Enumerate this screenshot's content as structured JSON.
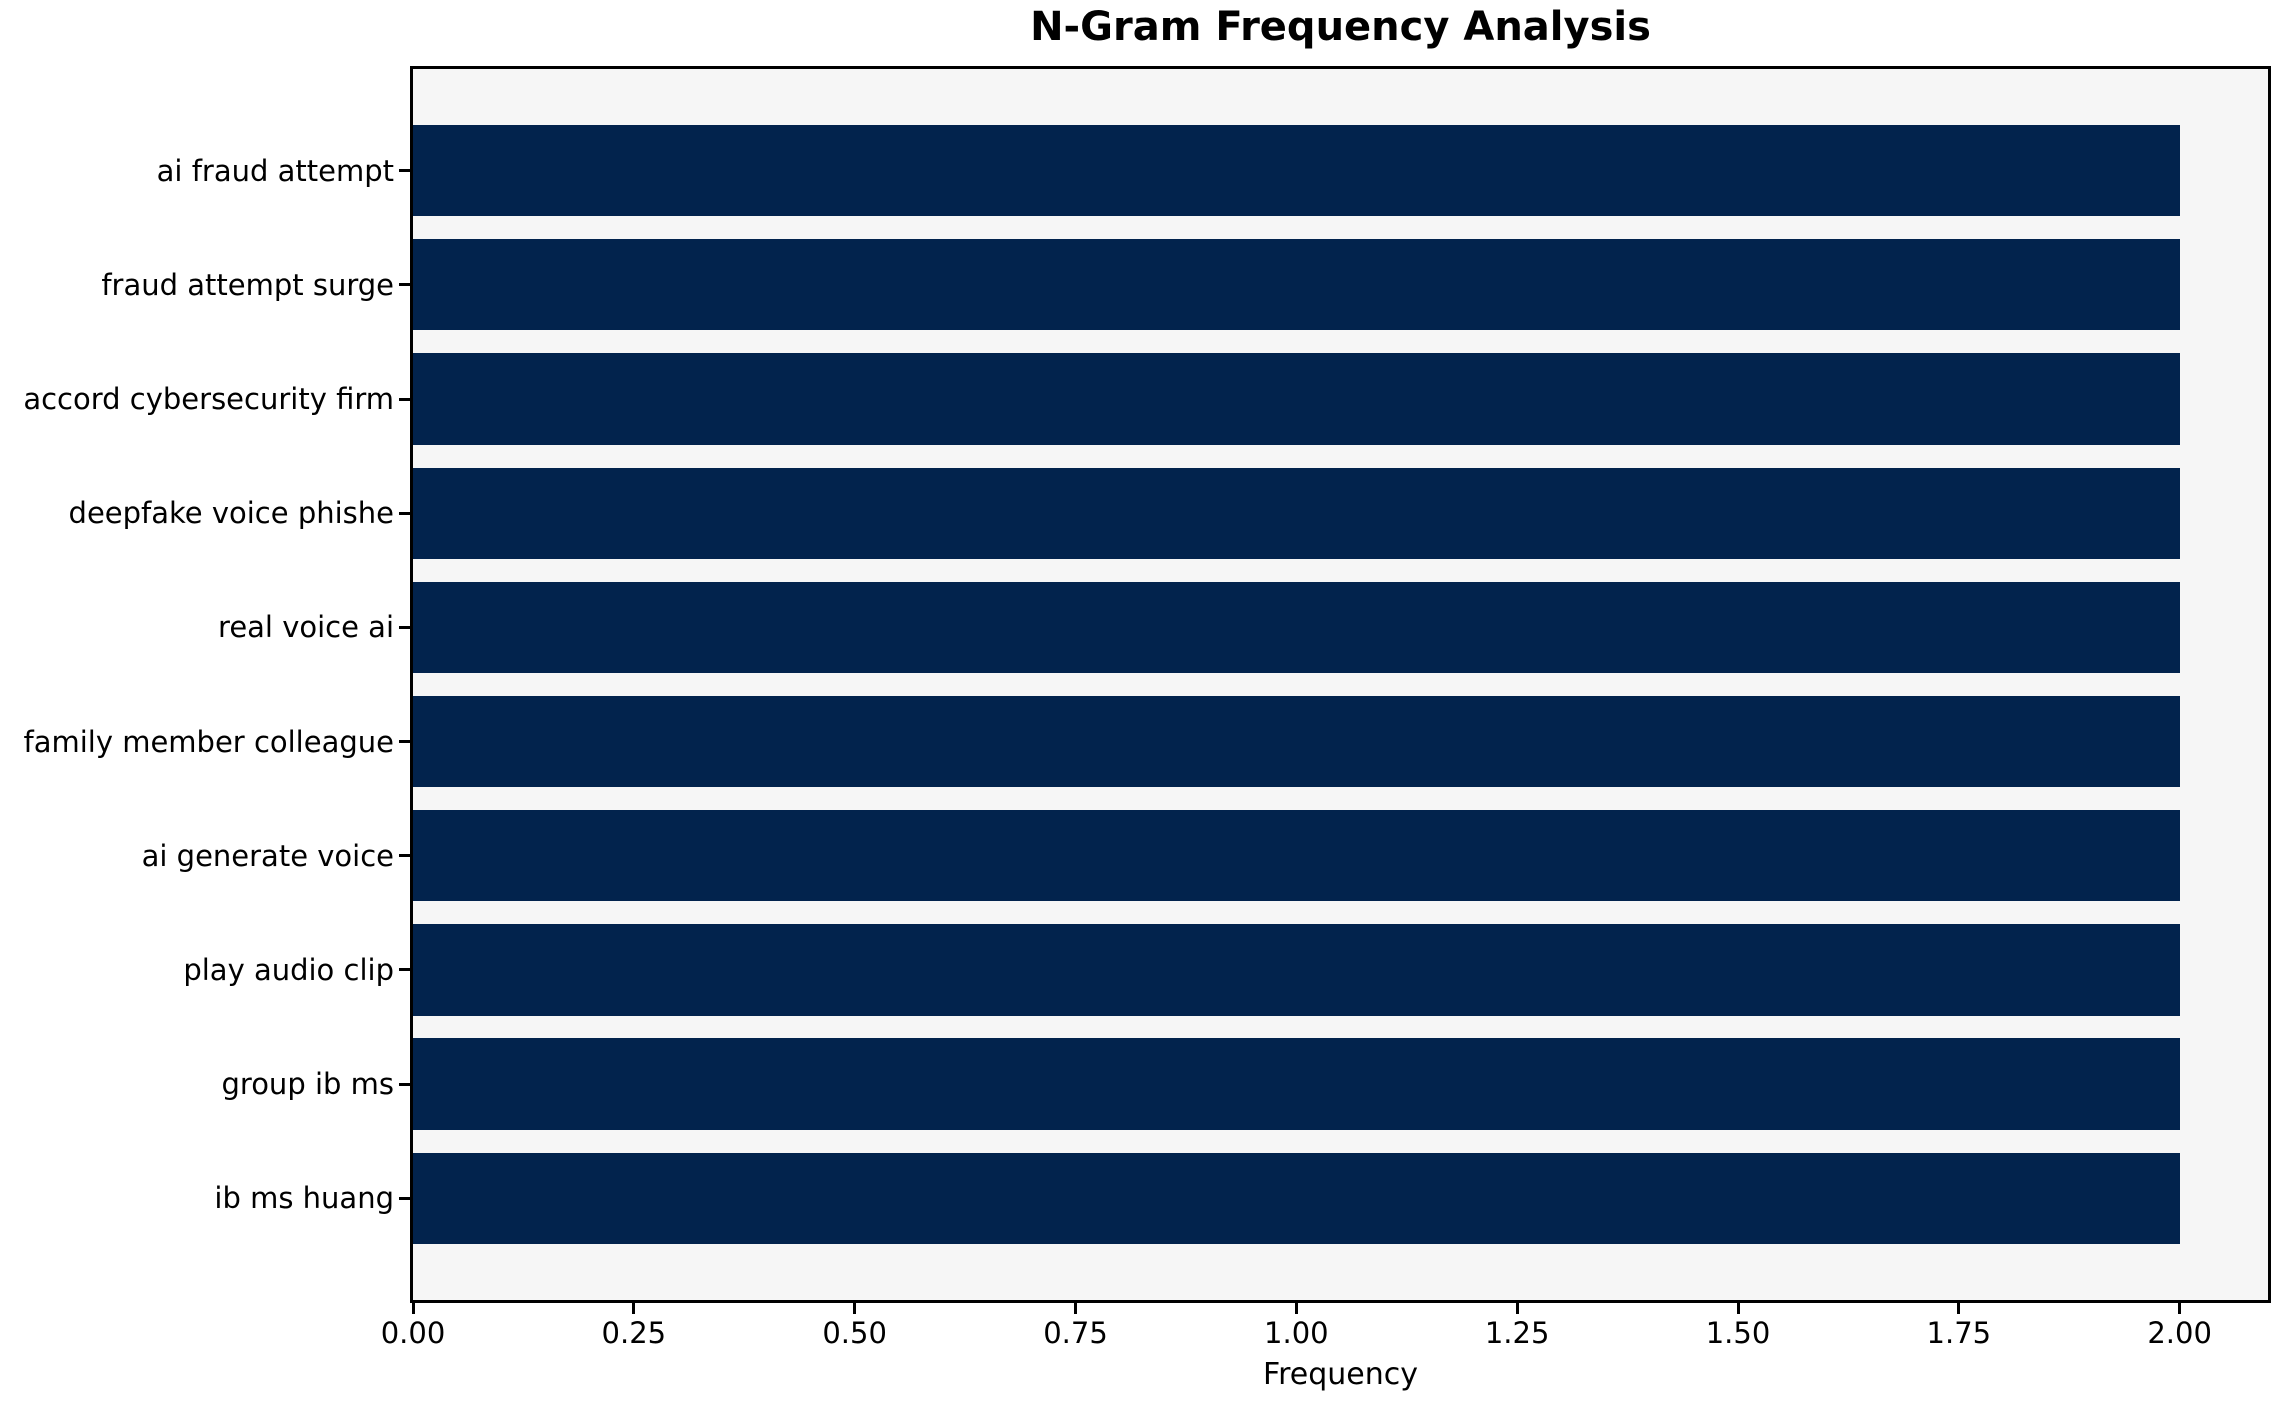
{
  "figure": {
    "background": "#ffffff",
    "plot_background": "#f6f6f6",
    "spine_color": "#000000",
    "text_color": "#000000"
  },
  "chart_data": {
    "type": "bar",
    "orientation": "horizontal",
    "title": "N-Gram Frequency Analysis",
    "xlabel": "Frequency",
    "ylabel": "",
    "categories": [
      "ai fraud attempt",
      "fraud attempt surge",
      "accord cybersecurity firm",
      "deepfake voice phishe",
      "real voice ai",
      "family member colleague",
      "ai generate voice",
      "play audio clip",
      "group ib ms",
      "ib ms huang"
    ],
    "values": [
      2,
      2,
      2,
      2,
      2,
      2,
      2,
      2,
      2,
      2
    ],
    "xlim": [
      0,
      2.1
    ],
    "xtick_values": [
      0.0,
      0.25,
      0.5,
      0.75,
      1.0,
      1.25,
      1.5,
      1.75,
      2.0
    ],
    "xtick_labels": [
      "0.00",
      "0.25",
      "0.50",
      "0.75",
      "1.00",
      "1.25",
      "1.50",
      "1.75",
      "2.00"
    ],
    "bar_color": "#02234d",
    "bar_fraction": 0.8,
    "grid": false,
    "legend": null
  }
}
